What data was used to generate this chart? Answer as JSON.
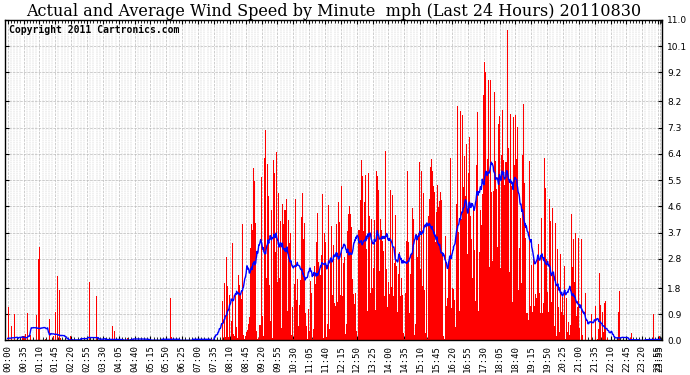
{
  "title": "Actual and Average Wind Speed by Minute  mph (Last 24 Hours) 20110830",
  "copyright_text": "Copyright 2011 Cartronics.com",
  "yticks": [
    0.0,
    0.9,
    1.8,
    2.8,
    3.7,
    4.6,
    5.5,
    6.4,
    7.3,
    8.2,
    9.2,
    10.1,
    11.0
  ],
  "ymax": 11.0,
  "ymin": 0.0,
  "bar_color": "#ff0000",
  "line_color": "#0000ff",
  "background_color": "#ffffff",
  "grid_color": "#bbbbbb",
  "title_fontsize": 11.5,
  "copyright_fontsize": 7,
  "tick_fontsize": 6.5
}
